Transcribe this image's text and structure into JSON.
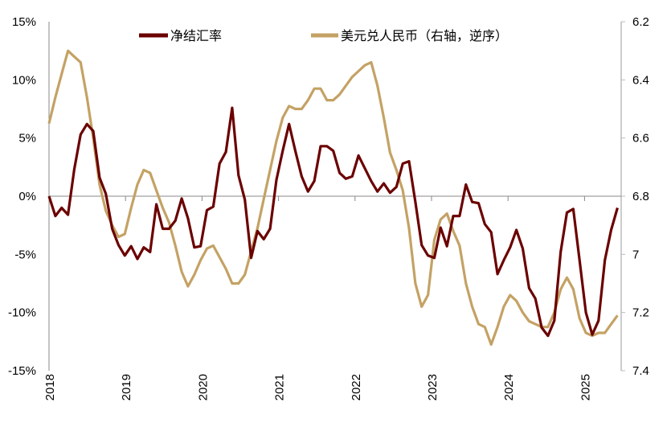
{
  "chart_data": {
    "type": "line",
    "title": "",
    "x_tick_labels": [
      "2018",
      "2019",
      "2020",
      "2021",
      "2022",
      "2023",
      "2024",
      "2025"
    ],
    "x_start": "2018-01",
    "x_frequency": "monthly",
    "left_axis": {
      "ticks": [
        "15%",
        "10%",
        "5%",
        "0%",
        "-5%",
        "-10%",
        "-15%"
      ],
      "tick_values": [
        15,
        10,
        5,
        0,
        -5,
        -10,
        -15
      ],
      "ylim": [
        -15,
        15
      ]
    },
    "right_axis": {
      "ticks": [
        "6.2",
        "6.4",
        "6.6",
        "6.8",
        "7",
        "7.2",
        "7.4"
      ],
      "tick_values": [
        6.2,
        6.4,
        6.6,
        6.8,
        7.0,
        7.2,
        7.4
      ],
      "ylim": [
        6.2,
        7.4
      ],
      "inverted": true
    },
    "legend_position": "top",
    "grid": false,
    "series": [
      {
        "name": "净结汇率",
        "axis": "left",
        "color": "#6B0000",
        "values": [
          0,
          -1.7,
          -1,
          -1.6,
          2.3,
          5.3,
          6.2,
          5.6,
          1.6,
          0.2,
          -2.8,
          -4.2,
          -5.1,
          -4.3,
          -5.4,
          -4.4,
          -4.8,
          -0.7,
          -2.8,
          -2.8,
          -2.1,
          -0.2,
          -1.9,
          -4.4,
          -4.3,
          -1.2,
          -0.9,
          2.8,
          3.8,
          7.6,
          1.8,
          -0.3,
          -5.3,
          -3.0,
          -3.7,
          -2.8,
          1.4,
          3.9,
          6.2,
          3.9,
          1.7,
          0.4,
          1.3,
          4.3,
          4.3,
          3.9,
          2.0,
          1.5,
          1.7,
          3.5,
          2.4,
          1.3,
          0.4,
          1.1,
          0.3,
          0.8,
          2.8,
          3.0,
          -0.5,
          -4.2,
          -5.1,
          -5.3,
          -2.7,
          -4.3,
          -1.7,
          -1.7,
          1.0,
          -0.5,
          -0.6,
          -2.4,
          -3.1,
          -6.7,
          -5.5,
          -4.4,
          -2.9,
          -4.5,
          -7.9,
          -8.8,
          -11.3,
          -12.0,
          -10.7,
          -4.8,
          -1.4,
          -1.1,
          -5.5,
          -10.0,
          -11.9,
          -10.7,
          -5.5,
          -2.9,
          -1.0
        ]
      },
      {
        "name": "美元兑人民币（右轴，逆序）",
        "axis": "right",
        "color": "#C4A265",
        "values": [
          6.55,
          6.46,
          6.38,
          6.3,
          6.32,
          6.34,
          6.46,
          6.6,
          6.76,
          6.85,
          6.9,
          6.94,
          6.93,
          6.84,
          6.76,
          6.71,
          6.72,
          6.78,
          6.84,
          6.89,
          6.97,
          7.06,
          7.11,
          7.07,
          7.02,
          6.98,
          6.97,
          7.01,
          7.05,
          7.1,
          7.1,
          7.07,
          6.99,
          6.91,
          6.81,
          6.71,
          6.61,
          6.53,
          6.49,
          6.5,
          6.5,
          6.47,
          6.43,
          6.43,
          6.47,
          6.47,
          6.45,
          6.42,
          6.39,
          6.37,
          6.35,
          6.34,
          6.42,
          6.53,
          6.65,
          6.71,
          6.78,
          6.91,
          7.1,
          7.18,
          7.14,
          6.95,
          6.88,
          6.86,
          6.92,
          6.97,
          7.1,
          7.18,
          7.24,
          7.25,
          7.31,
          7.25,
          7.18,
          7.14,
          7.16,
          7.2,
          7.23,
          7.24,
          7.25,
          7.25,
          7.2,
          7.12,
          7.08,
          7.12,
          7.22,
          7.27,
          7.28,
          7.27,
          7.27,
          7.24,
          7.21
        ]
      }
    ]
  }
}
